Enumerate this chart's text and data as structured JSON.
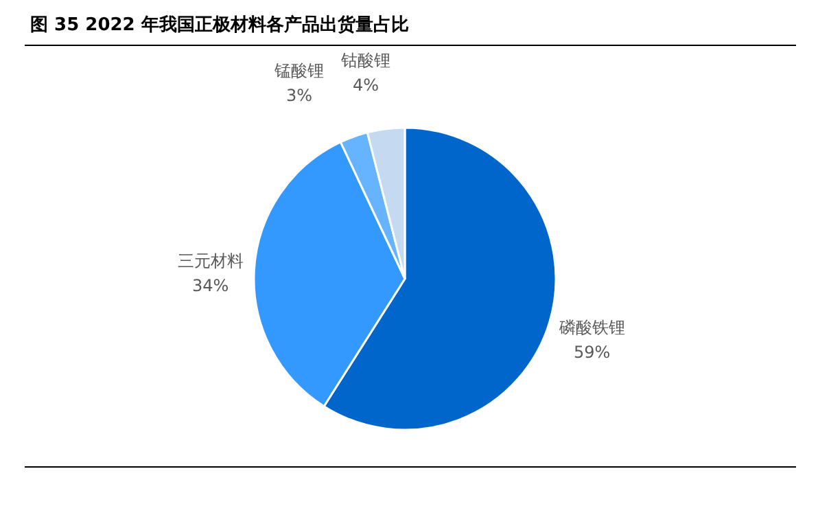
{
  "chart_data": {
    "type": "pie",
    "title": "图 35 2022 年我国正极材料各产品出货量占比",
    "categories": [
      "磷酸铁锂",
      "三元材料",
      "锰酸锂",
      "钴酸锂"
    ],
    "values": [
      59,
      34,
      3,
      4
    ],
    "colors": [
      "#0066cc",
      "#3399ff",
      "#66b3ff",
      "#c5d9f1"
    ],
    "value_labels": [
      "59%",
      "34%",
      "3%",
      "4%"
    ],
    "legend": false
  }
}
